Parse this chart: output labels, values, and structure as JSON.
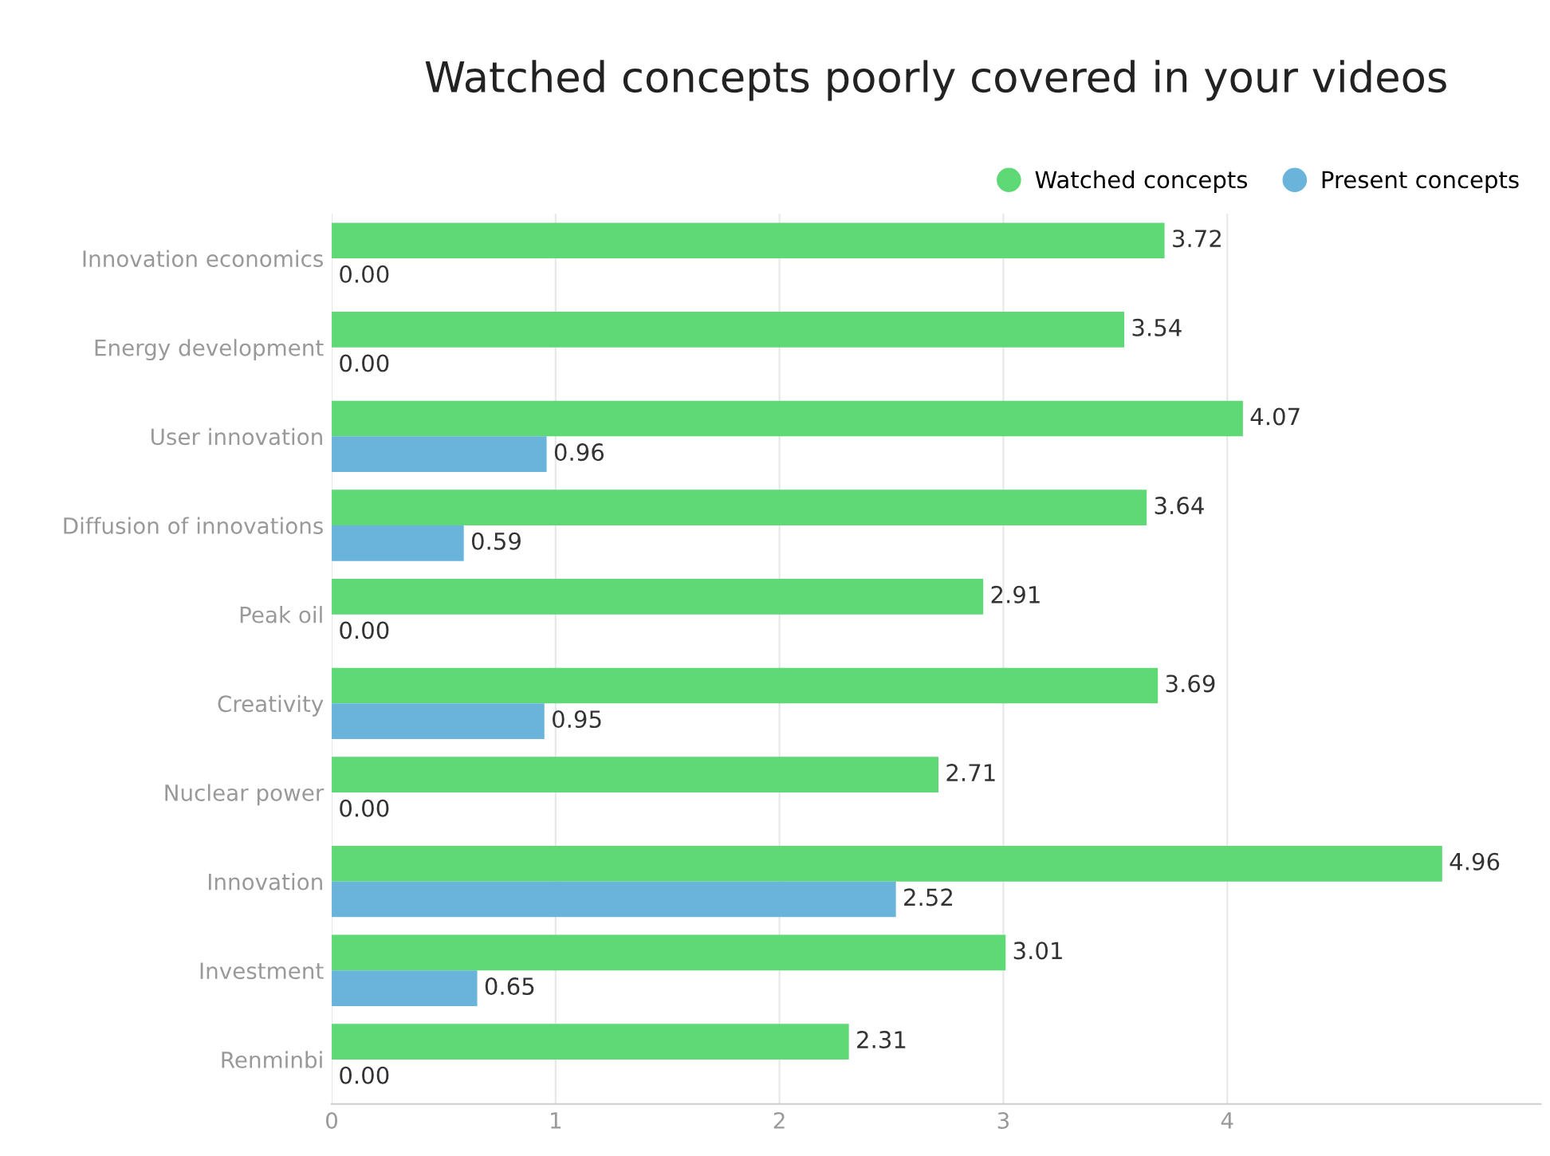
{
  "chart_data": {
    "type": "bar",
    "orientation": "horizontal",
    "title": "Watched concepts poorly covered in your videos",
    "categories": [
      "Innovation economics",
      "Energy development",
      "User innovation",
      "Diffusion of innovations",
      "Peak oil",
      "Creativity",
      "Nuclear power",
      "Innovation",
      "Investment",
      "Renminbi"
    ],
    "series": [
      {
        "name": "Watched concepts",
        "color": "#5fd876",
        "values": [
          3.72,
          3.54,
          4.07,
          3.64,
          2.91,
          3.69,
          2.71,
          4.96,
          3.01,
          2.31
        ],
        "value_labels": [
          "3.72",
          "3.54",
          "4.07",
          "3.64",
          "2.91",
          "3.69",
          "2.71",
          "4.96",
          "3.01",
          "2.31"
        ]
      },
      {
        "name": "Present concepts",
        "color": "#6ab4dc",
        "values": [
          0,
          0,
          0.96,
          0.59,
          0,
          0.95,
          0,
          2.52,
          0.65,
          0
        ],
        "value_labels": [
          "0.00",
          "0.00",
          "0.96",
          "0.59",
          "0.00",
          "0.95",
          "0.00",
          "2.52",
          "0.65",
          "0.00"
        ]
      }
    ],
    "xlim": [
      0,
      5.4
    ],
    "xticks": [
      0,
      1,
      2,
      3,
      4
    ],
    "grid": "x",
    "legend": "top right"
  }
}
